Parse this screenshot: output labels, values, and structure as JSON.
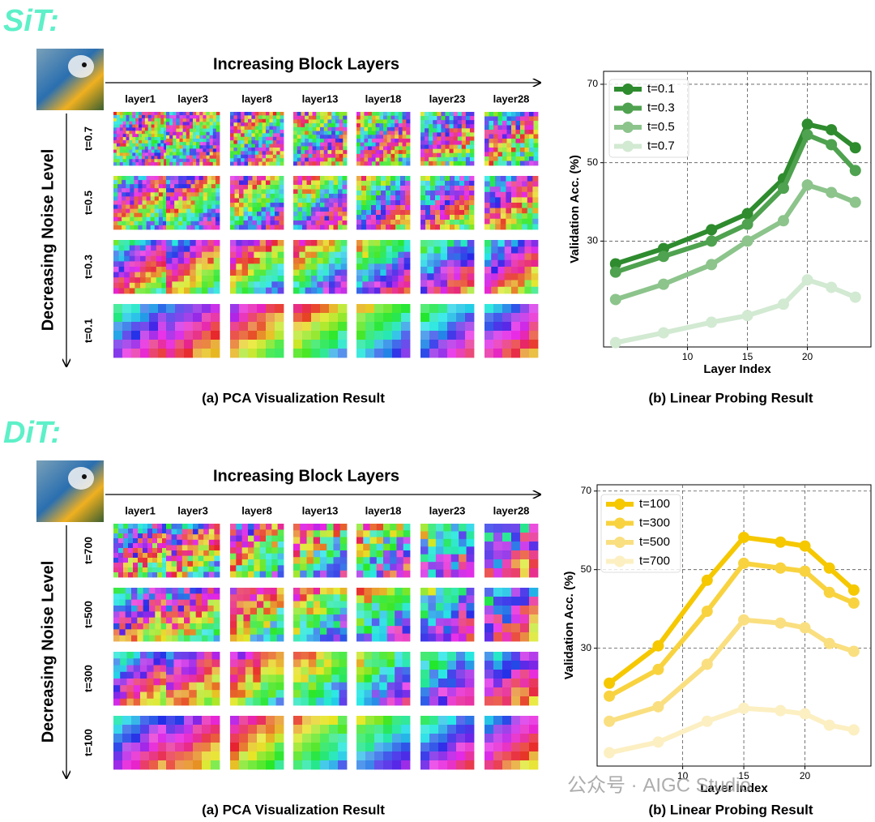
{
  "panels": [
    {
      "heading": "SiT:",
      "pca": {
        "title": "Increasing Block Layers",
        "y_label": "Decreasing Noise Level",
        "columns": [
          "layer1",
          "layer3",
          "layer8",
          "layer13",
          "layer18",
          "layer23",
          "layer28"
        ],
        "rows": [
          "t=0.7",
          "t=0.5",
          "t=0.3",
          "t=0.1"
        ],
        "caption": "(a) PCA Visualization Result"
      },
      "probe_caption": "(b) Linear Probing Result"
    },
    {
      "heading": "DiT:",
      "pca": {
        "title": "Increasing Block Layers",
        "y_label": "Decreasing Noise Level",
        "columns": [
          "layer1",
          "layer3",
          "layer8",
          "layer13",
          "layer18",
          "layer23",
          "layer28"
        ],
        "rows": [
          "t=700",
          "t=500",
          "t=300",
          "t=100"
        ],
        "caption": "(a) PCA Visualization Result"
      },
      "probe_caption": "(b) Linear Probing Result"
    }
  ],
  "chart_data": [
    {
      "type": "line",
      "x_label": "Layer Index",
      "y_label": "Validation Acc. (%)",
      "x": [
        4,
        8,
        12,
        15,
        18,
        20,
        22,
        24
      ],
      "xlim": [
        3,
        25.3
      ],
      "xticks": [
        10,
        15,
        20
      ],
      "ylim": [
        3,
        73.3
      ],
      "yticks": [
        30,
        50,
        70
      ],
      "grid": true,
      "legend": "upper left",
      "series": [
        {
          "name": "t=0.1",
          "color": "#2e8b2e",
          "values": [
            24.2,
            28.1,
            32.9,
            37.0,
            45.9,
            59.8,
            58.4,
            53.8
          ]
        },
        {
          "name": "t=0.3",
          "color": "#4fa24f",
          "values": [
            22.1,
            26.1,
            30.0,
            34.3,
            43.5,
            57.1,
            54.6,
            48.0
          ]
        },
        {
          "name": "t=0.5",
          "color": "#8cc48c",
          "values": [
            15.1,
            19.0,
            24.0,
            30.0,
            35.2,
            44.3,
            42.4,
            39.9
          ]
        },
        {
          "name": "t=0.7",
          "color": "#d2e9d2",
          "values": [
            4.1,
            6.6,
            9.3,
            11.0,
            13.9,
            20.1,
            18.2,
            15.7
          ]
        }
      ]
    },
    {
      "type": "line",
      "x_label": "Layer Index",
      "y_label": "Validation Acc. (%)",
      "x": [
        4,
        8,
        12,
        15,
        18,
        20,
        22,
        24
      ],
      "xlim": [
        3,
        25.4
      ],
      "xticks": [
        10,
        15,
        20
      ],
      "ylim": [
        0,
        71.6
      ],
      "yticks": [
        30,
        50,
        70
      ],
      "grid": true,
      "legend": "upper left",
      "series": [
        {
          "name": "t=100",
          "color": "#f5c800",
          "values": [
            21.1,
            30.6,
            47.3,
            58.2,
            57.0,
            56.0,
            50.4,
            44.8
          ]
        },
        {
          "name": "t=300",
          "color": "#f8d33f",
          "values": [
            17.8,
            24.6,
            39.4,
            51.6,
            50.4,
            49.6,
            44.2,
            41.5
          ]
        },
        {
          "name": "t=500",
          "color": "#fadf80",
          "values": [
            11.4,
            15.1,
            25.9,
            37.2,
            36.4,
            35.2,
            31.2,
            29.2
          ]
        },
        {
          "name": "t=700",
          "color": "#fcefc2",
          "values": [
            3.4,
            6.1,
            11.4,
            14.7,
            14.1,
            13.3,
            10.4,
            9.2
          ]
        }
      ]
    }
  ],
  "watermark": "公众号 · AIGC Studio"
}
